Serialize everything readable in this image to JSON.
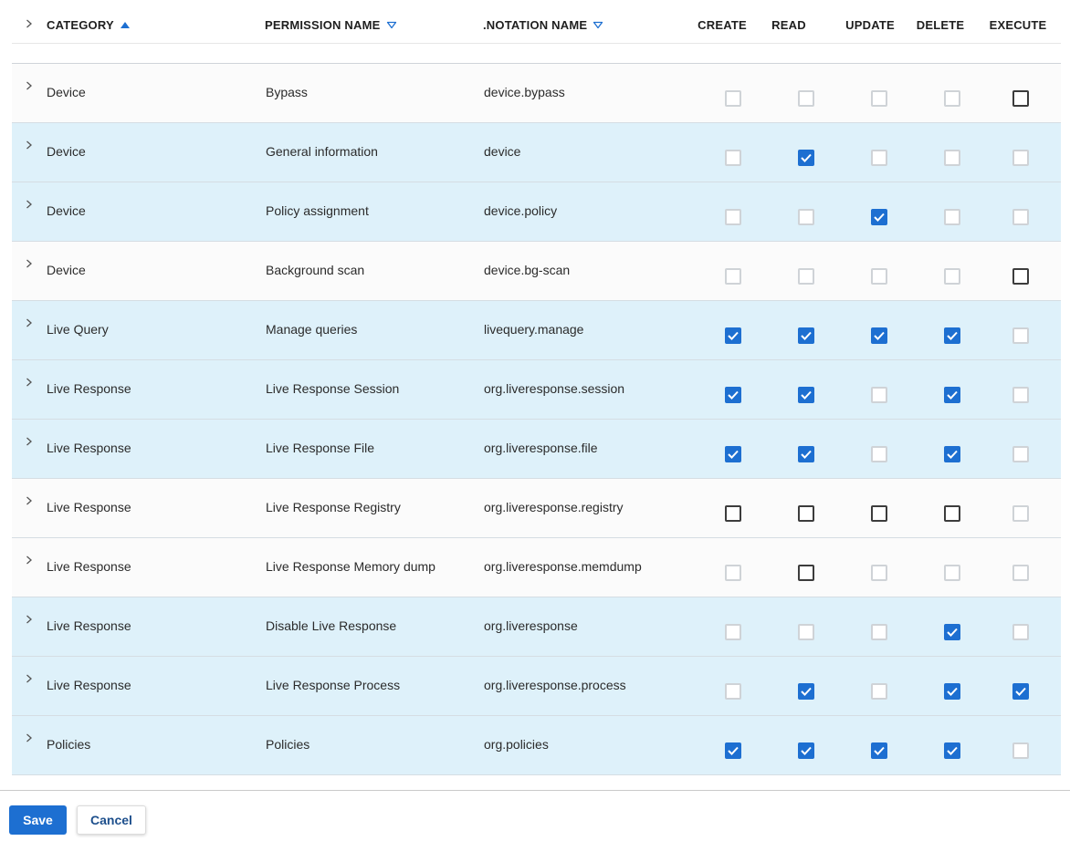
{
  "columns": {
    "category": "CATEGORY",
    "permission_name": "PERMISSION NAME",
    "notation_name": ".NOTATION NAME",
    "create": "CREATE",
    "read": "READ",
    "update": "UPDATE",
    "delete": "DELETE",
    "execute": "EXECUTE"
  },
  "sort": {
    "category": "ascending-filled",
    "permission_name": "descending-outline",
    "notation_name": "descending-outline"
  },
  "colors": {
    "accent": "#1d6fd1",
    "selected_row": "#def1fa",
    "row": "#fbfbfb",
    "checkbox_disabled_border": "#cfd3d7",
    "checkbox_empty_border": "#3c3c3c"
  },
  "checkbox_state_legend": {
    "on": "checked",
    "off": "unchecked-disabled",
    "empty": "unchecked-enabled"
  },
  "rows": [
    {
      "selected": false,
      "category": "Device",
      "permission": "Bypass",
      "notation": "device.bypass",
      "states": [
        "off",
        "off",
        "off",
        "off",
        "empty"
      ]
    },
    {
      "selected": true,
      "category": "Device",
      "permission": "General information",
      "notation": "device",
      "states": [
        "off",
        "on",
        "off",
        "off",
        "off"
      ]
    },
    {
      "selected": true,
      "category": "Device",
      "permission": "Policy assignment",
      "notation": "device.policy",
      "states": [
        "off",
        "off",
        "on",
        "off",
        "off"
      ]
    },
    {
      "selected": false,
      "category": "Device",
      "permission": "Background scan",
      "notation": "device.bg-scan",
      "states": [
        "off",
        "off",
        "off",
        "off",
        "empty"
      ]
    },
    {
      "selected": true,
      "category": "Live Query",
      "permission": "Manage queries",
      "notation": "livequery.manage",
      "states": [
        "on",
        "on",
        "on",
        "on",
        "off"
      ]
    },
    {
      "selected": true,
      "category": "Live Response",
      "permission": "Live Response Session",
      "notation": "org.liveresponse.session",
      "states": [
        "on",
        "on",
        "off",
        "on",
        "off"
      ]
    },
    {
      "selected": true,
      "category": "Live Response",
      "permission": "Live Response File",
      "notation": "org.liveresponse.file",
      "states": [
        "on",
        "on",
        "off",
        "on",
        "off"
      ]
    },
    {
      "selected": false,
      "category": "Live Response",
      "permission": "Live Response Registry",
      "notation": "org.liveresponse.registry",
      "states": [
        "empty",
        "empty",
        "empty",
        "empty",
        "off"
      ]
    },
    {
      "selected": false,
      "category": "Live Response",
      "permission": "Live Response Memory dump",
      "notation": "org.liveresponse.memdump",
      "states": [
        "off",
        "empty",
        "off",
        "off",
        "off"
      ]
    },
    {
      "selected": true,
      "category": "Live Response",
      "permission": "Disable Live Response",
      "notation": "org.liveresponse",
      "states": [
        "off",
        "off",
        "off",
        "on",
        "off"
      ]
    },
    {
      "selected": true,
      "category": "Live Response",
      "permission": "Live Response Process",
      "notation": "org.liveresponse.process",
      "states": [
        "off",
        "on",
        "off",
        "on",
        "on"
      ]
    },
    {
      "selected": true,
      "category": "Policies",
      "permission": "Policies",
      "notation": "org.policies",
      "states": [
        "on",
        "on",
        "on",
        "on",
        "off"
      ]
    }
  ],
  "buttons": {
    "save": "Save",
    "cancel": "Cancel"
  }
}
